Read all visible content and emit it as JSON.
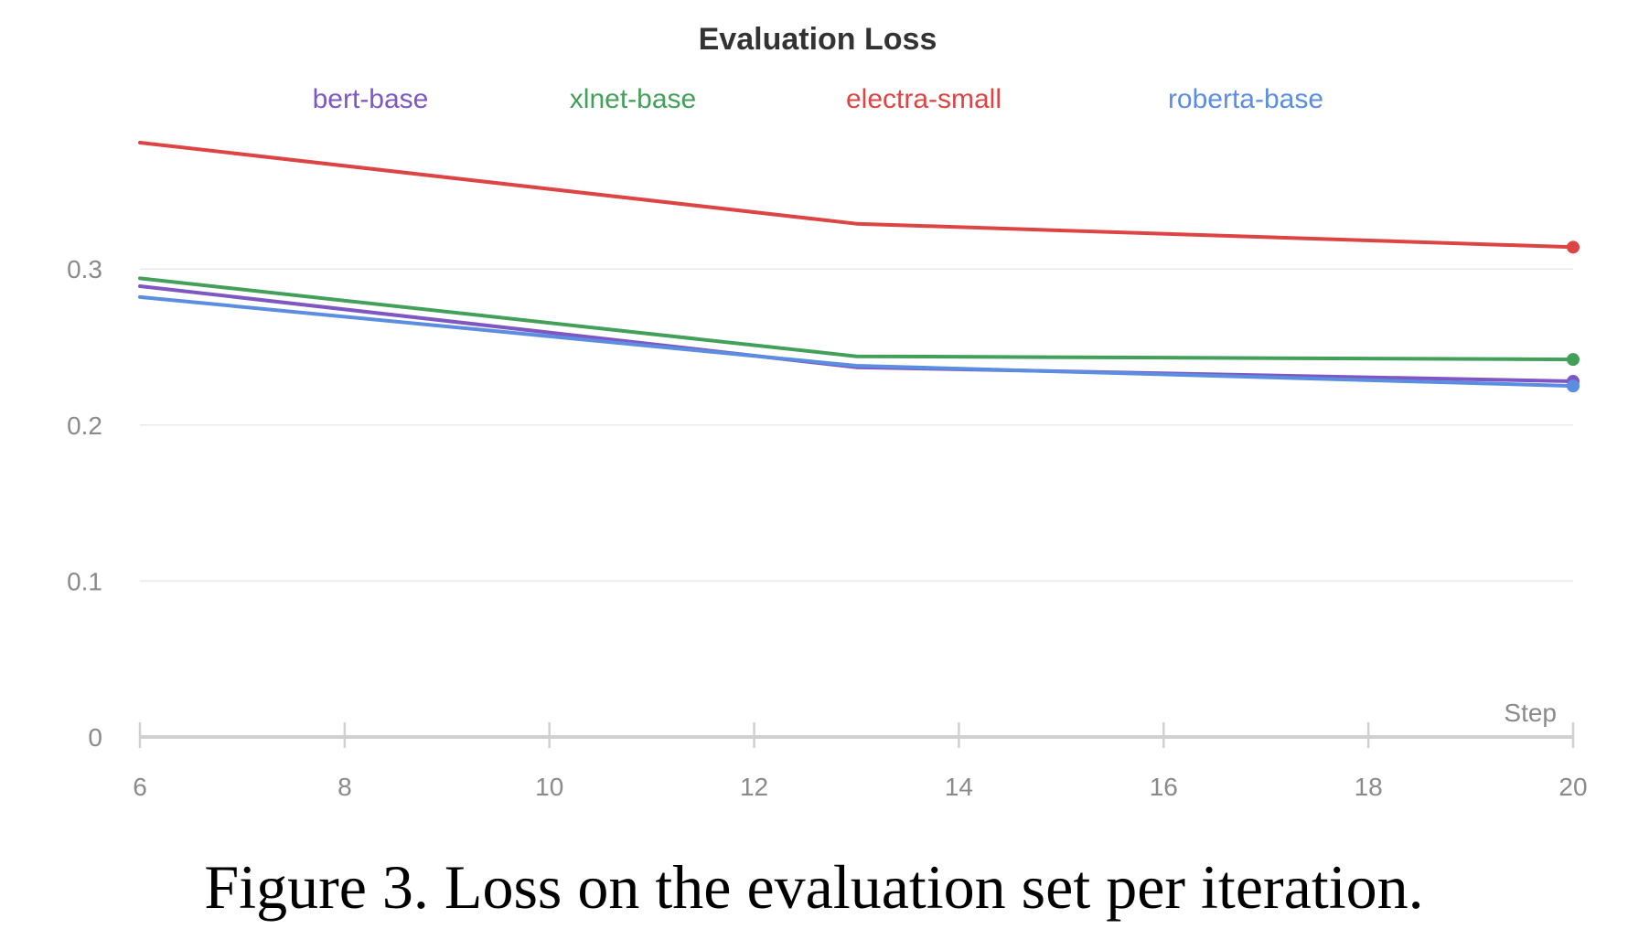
{
  "chart_data": {
    "type": "line",
    "title": "Evaluation Loss",
    "xlabel": "Step",
    "ylabel": "",
    "x": [
      6,
      13,
      20
    ],
    "xlim": [
      6,
      20
    ],
    "ylim": [
      0,
      0.38
    ],
    "xticks": [
      "6",
      "8",
      "10",
      "12",
      "14",
      "16",
      "18",
      "20"
    ],
    "yticks": [
      "0",
      "0.1",
      "0.2",
      "0.3"
    ],
    "grid": true,
    "legend_position": "top",
    "series": [
      {
        "name": "bert-base",
        "color": "#7e57c2",
        "values": [
          0.289,
          0.237,
          0.228
        ]
      },
      {
        "name": "xlnet-base",
        "color": "#43a05a",
        "values": [
          0.294,
          0.244,
          0.242
        ]
      },
      {
        "name": "electra-small",
        "color": "#dd4444",
        "values": [
          0.381,
          0.329,
          0.314
        ]
      },
      {
        "name": "roberta-base",
        "color": "#5b8de0",
        "values": [
          0.282,
          0.238,
          0.225
        ]
      }
    ]
  },
  "caption": "Figure 3. Loss on the evaluation set per iteration."
}
